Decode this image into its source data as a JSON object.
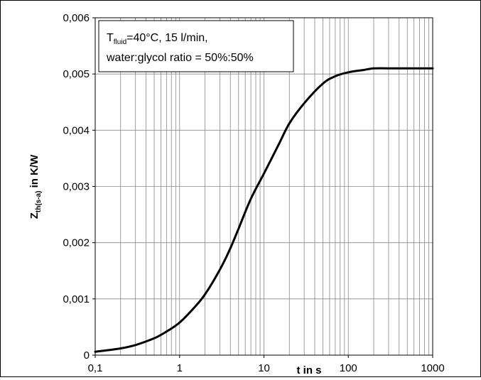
{
  "chart_data": {
    "type": "line",
    "title": "",
    "annotation": {
      "line1_symbol": "T",
      "line1_subscript": "fluid",
      "line1_rest": "=40°C, 15 l/min,",
      "line2": "water:glycol ratio = 50%:50%"
    },
    "xlabel": "t in s",
    "ylabel": {
      "main": "Z",
      "subscript": "th(s-a)",
      "rest": " in K/W"
    },
    "xscale": "log",
    "xlim": [
      0.1,
      1000
    ],
    "ylim": [
      0,
      0.006
    ],
    "x_tick_labels": [
      "0,1",
      "1",
      "10",
      "100",
      "1000"
    ],
    "y_tick_labels": [
      "0",
      "0,001",
      "0,002",
      "0,003",
      "0,004",
      "0,005",
      "0,006"
    ],
    "grid": true,
    "series": [
      {
        "color": "#000000",
        "x": [
          0.1,
          0.2,
          0.3,
          0.5,
          0.7,
          1,
          1.5,
          2,
          3,
          4,
          5,
          7,
          10,
          15,
          20,
          30,
          50,
          70,
          100,
          150,
          200,
          300,
          500,
          1000
        ],
        "y": [
          6e-05,
          0.00012,
          0.00018,
          0.0003,
          0.00042,
          0.00058,
          0.00085,
          0.00108,
          0.00152,
          0.0019,
          0.00225,
          0.00278,
          0.00323,
          0.00375,
          0.00412,
          0.00448,
          0.00483,
          0.00496,
          0.00503,
          0.00507,
          0.0051,
          0.0051,
          0.0051,
          0.0051
        ]
      }
    ]
  }
}
